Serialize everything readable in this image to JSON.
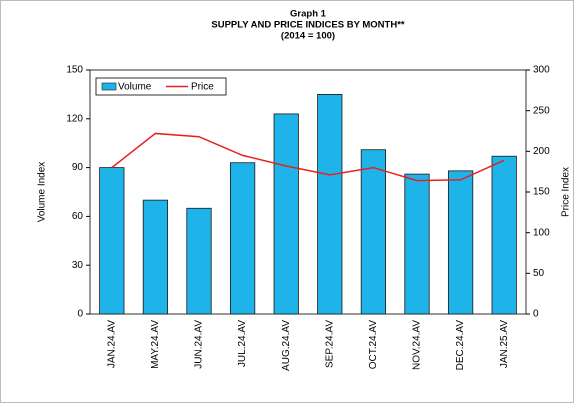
{
  "chart_data": {
    "type": "bar",
    "title": [
      "Graph 1",
      "SUPPLY AND PRICE INDICES BY MONTH**",
      "(2014 = 100)"
    ],
    "ylabel": "Volume Index",
    "y2label": "Price Index",
    "categories": [
      "JAN.24.AV",
      "MAY.24.AV",
      "JUN.24.AV",
      "JUL.24.AV",
      "AUG.24.AV",
      "SEP.24.AV",
      "OCT.24.AV",
      "NOV.24.AV",
      "DEC.24.AV",
      "JAN.25.AV"
    ],
    "series": [
      {
        "name": "Volume",
        "color": "#1eb4ea",
        "type": "bar",
        "values": [
          90,
          70,
          65,
          93,
          123,
          135,
          101,
          86,
          88,
          97
        ]
      },
      {
        "name": "Price",
        "color": "#e8201c",
        "type": "line",
        "axis": "y2",
        "values": [
          180,
          222,
          218,
          195,
          182,
          171,
          180,
          164,
          165,
          189
        ]
      }
    ],
    "ylim": [
      0,
      150
    ],
    "yticks": [
      0,
      30,
      60,
      90,
      120,
      150
    ],
    "y2lim": [
      0,
      300
    ],
    "y2ticks": [
      0,
      50,
      100,
      150,
      200,
      250,
      300
    ],
    "legend": "top-left",
    "grid": false
  }
}
